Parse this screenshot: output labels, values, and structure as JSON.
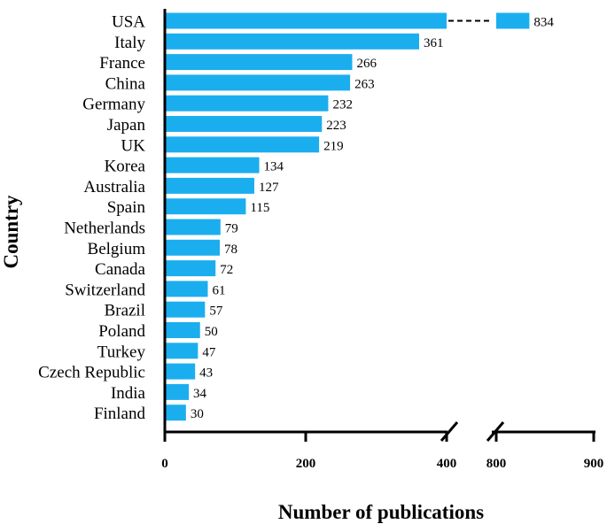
{
  "chart_data": {
    "type": "bar",
    "orientation": "horizontal",
    "bar_color": "#1BAEEF",
    "xlabel": "Number of publications",
    "ylabel": "Country",
    "x_axis_break": [
      400,
      800
    ],
    "xlim": [
      0,
      900
    ],
    "xticks": [
      0,
      200,
      400,
      800,
      900
    ],
    "categories": [
      "USA",
      "Italy",
      "France",
      "China",
      "Germany",
      "Japan",
      "UK",
      "Korea",
      "Australia",
      "Spain",
      "Netherlands",
      "Belgium",
      "Canada",
      "Switzerland",
      "Brazil",
      "Poland",
      "Turkey",
      "Czech Republic",
      "India",
      "Finland"
    ],
    "values": [
      834,
      361,
      266,
      263,
      232,
      223,
      219,
      134,
      127,
      115,
      79,
      78,
      72,
      61,
      57,
      50,
      47,
      43,
      34,
      30
    ]
  }
}
